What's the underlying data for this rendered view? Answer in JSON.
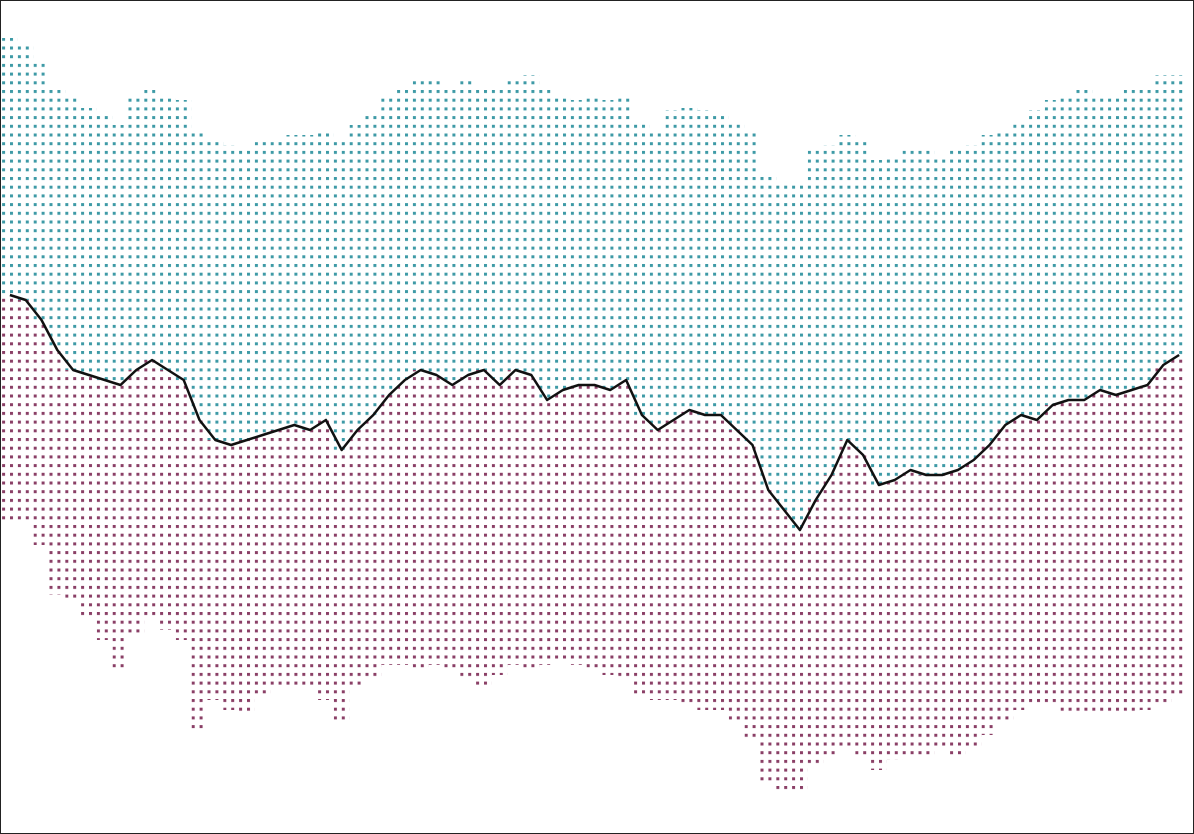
{
  "chart_data": {
    "type": "dotprofile",
    "ylim": [
      0,
      834
    ],
    "series": [
      {
        "color": "#111111",
        "values": [
          539,
          534,
          514,
          484,
          464,
          459,
          454,
          449,
          464,
          474,
          464,
          454,
          414,
          394,
          389,
          394,
          399,
          404,
          409,
          404,
          414,
          384,
          404,
          419,
          439,
          454,
          464,
          459,
          449,
          459,
          464,
          449,
          464,
          459,
          434,
          444,
          449,
          449,
          444,
          454,
          419,
          404,
          414,
          424,
          419,
          419,
          404,
          389,
          344,
          324,
          304,
          334,
          359,
          394,
          379,
          349,
          354,
          364,
          359,
          359,
          364,
          374,
          389,
          409,
          419,
          414,
          429,
          434,
          434,
          444,
          439,
          444,
          449,
          469,
          479
        ]
      },
      {
        "color": "#3e9aa6",
        "values": [
          796,
          789,
          774,
          749,
          739,
          726,
          719,
          709,
          739,
          746,
          739,
          734,
          704,
          694,
          689,
          684,
          694,
          694,
          699,
          699,
          704,
          694,
          709,
          719,
          739,
          749,
          754,
          754,
          749,
          754,
          749,
          744,
          754,
          759,
          744,
          739,
          734,
          739,
          734,
          739,
          714,
          704,
          724,
          726,
          724,
          719,
          714,
          704,
          659,
          649,
          649,
          684,
          689,
          699,
          694,
          674,
          679,
          684,
          684,
          679,
          684,
          689,
          699,
          704,
          714,
          724,
          734,
          739,
          744,
          739,
          739,
          744,
          749,
          759,
          759
        ]
      },
      {
        "color": "#8a3f66",
        "values": [
          314,
          314,
          289,
          239,
          234,
          214,
          194,
          164,
          199,
          214,
          204,
          194,
          104,
          134,
          124,
          119,
          139,
          144,
          144,
          144,
          134,
          114,
          144,
          154,
          169,
          169,
          164,
          169,
          164,
          154,
          144,
          159,
          169,
          164,
          169,
          174,
          169,
          164,
          159,
          154,
          139,
          134,
          134,
          129,
          124,
          124,
          114,
          94,
          49,
          44,
          44,
          69,
          79,
          84,
          79,
          64,
          74,
          79,
          79,
          84,
          79,
          84,
          99,
          114,
          124,
          129,
          129,
          119,
          119,
          119,
          119,
          119,
          124,
          129,
          139
        ]
      }
    ]
  }
}
